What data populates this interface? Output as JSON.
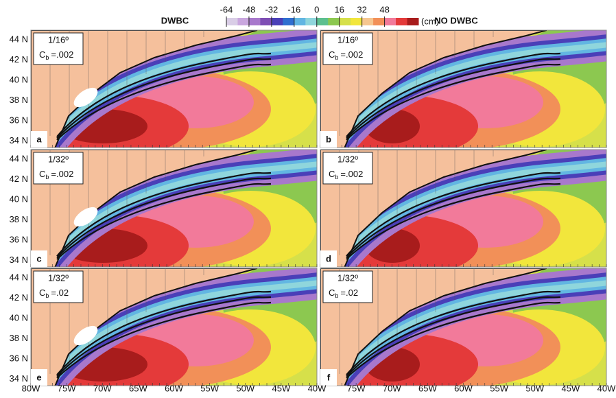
{
  "colorbar": {
    "ticks": [
      -64,
      -48,
      -32,
      -16,
      0,
      16,
      32,
      48
    ],
    "unit": "(cm)",
    "lim": [
      -64,
      72
    ],
    "colors": [
      "#d9cde6",
      "#c9a6de",
      "#a878cc",
      "#7e4eb4",
      "#4a3fb8",
      "#2f6fd0",
      "#62b6e2",
      "#8fd6dc",
      "#5cbf8f",
      "#8cc850",
      "#d6e04a",
      "#f2e63c",
      "#f6c690",
      "#f29058",
      "#f27a9a",
      "#e43a3a",
      "#a81c1c"
    ]
  },
  "left_title": "DWBC",
  "right_title": "NO DWBC",
  "lat_labels": [
    "44 N",
    "42 N",
    "40 N",
    "38 N",
    "36 N",
    "34 N"
  ],
  "lon_labels_left": [
    "80W",
    "75W",
    "70W",
    "65W",
    "60W",
    "55W",
    "50W",
    "45W",
    "40W"
  ],
  "lon_labels_right": [
    "75W",
    "70W",
    "65W",
    "60W",
    "55W",
    "50W",
    "45W",
    "40W"
  ],
  "panels": [
    {
      "letter": "a",
      "resolution": "1/16º",
      "coef": "C",
      "coef_sub": "b",
      "coef_value": "=.002"
    },
    {
      "letter": "b",
      "resolution": "1/16º",
      "coef": "C",
      "coef_sub": "b",
      "coef_value": "=.002"
    },
    {
      "letter": "c",
      "resolution": "1/32º",
      "coef": "C",
      "coef_sub": "b",
      "coef_value": "=.002"
    },
    {
      "letter": "d",
      "resolution": "1/32º",
      "coef": "C",
      "coef_sub": "b",
      "coef_value": "=.002"
    },
    {
      "letter": "e",
      "resolution": "1/32º",
      "coef": "C",
      "coef_sub": "b",
      "coef_value": "=.02"
    },
    {
      "letter": "f",
      "resolution": "1/32º",
      "coef": "C",
      "coef_sub": "b",
      "coef_value": "=.02"
    }
  ]
}
